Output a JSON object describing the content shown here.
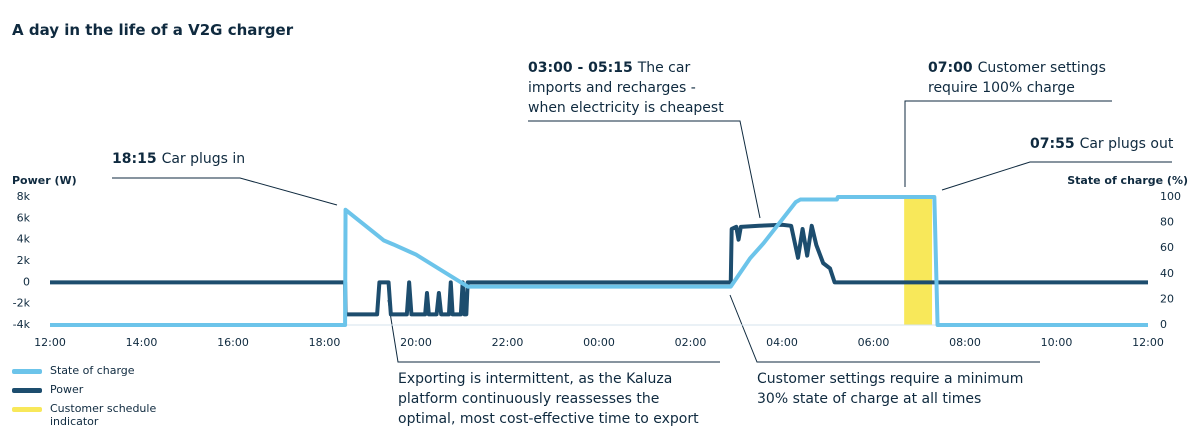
{
  "chart_data": {
    "type": "line",
    "title": "A day in the life of a V2G charger",
    "ylabel": "Power (W)",
    "y2label": "State of charge (%)",
    "xlim": [
      12,
      36
    ],
    "xticks": [
      {
        "value": 12,
        "label": "12:00"
      },
      {
        "value": 14,
        "label": "14:00"
      },
      {
        "value": 16,
        "label": "16:00"
      },
      {
        "value": 18,
        "label": "18:00"
      },
      {
        "value": 20,
        "label": "20:00"
      },
      {
        "value": 22,
        "label": "22:00"
      },
      {
        "value": 24,
        "label": "00:00"
      },
      {
        "value": 26,
        "label": "02:00"
      },
      {
        "value": 28,
        "label": "04:00"
      },
      {
        "value": 30,
        "label": "06:00"
      },
      {
        "value": 32,
        "label": "08:00"
      },
      {
        "value": 34,
        "label": "10:00"
      },
      {
        "value": 36,
        "label": "12:00"
      }
    ],
    "ylim": [
      -4000,
      8000
    ],
    "yticks": [
      {
        "value": -4000,
        "label": "-4k"
      },
      {
        "value": -2000,
        "label": "-2k"
      },
      0,
      {
        "value": 2000,
        "label": "2k"
      },
      {
        "value": 4000,
        "label": "4k"
      },
      {
        "value": 6000,
        "label": "6k"
      },
      {
        "value": 8000,
        "label": "8k"
      }
    ],
    "y2lim": [
      0,
      100
    ],
    "y2ticks": [
      0,
      20,
      40,
      60,
      80,
      100
    ],
    "series": [
      {
        "name": "Power",
        "color": "#1d4d6e",
        "axis": "y",
        "x": [
          12,
          18.45,
          18.46,
          19.15,
          19.2,
          19.4,
          19.45,
          19.8,
          19.85,
          19.9,
          20.2,
          20.24,
          20.28,
          20.45,
          20.5,
          20.55,
          20.72,
          20.76,
          20.8,
          20.98,
          21.02,
          21.06,
          21.1,
          21.13,
          26.88,
          26.9,
          27.0,
          27.05,
          27.1,
          27.5,
          28.0,
          28.2,
          28.35,
          28.45,
          28.55,
          28.65,
          28.75,
          28.9,
          29.05,
          29.15,
          36
        ],
        "values": [
          0,
          0,
          -3000,
          -3000,
          0,
          0,
          -3000,
          -3000,
          0,
          -3000,
          -3000,
          -1000,
          -3000,
          -3000,
          -1000,
          -3000,
          -3000,
          0,
          -3000,
          -3000,
          0,
          -3000,
          -3000,
          0,
          0,
          5000,
          5200,
          4000,
          5200,
          5300,
          5400,
          5300,
          2300,
          5000,
          2500,
          5300,
          3500,
          1800,
          1300,
          0,
          0
        ]
      },
      {
        "name": "State of charge",
        "color": "#6cc4ea",
        "axis": "y2",
        "x": [
          12,
          18.45,
          18.46,
          19.3,
          19.5,
          20,
          21.13,
          26.88,
          27.3,
          27.6,
          28.3,
          28.4,
          29.2,
          29.22,
          31.33,
          31.4,
          36
        ],
        "values": [
          0,
          0,
          90,
          66,
          63,
          55,
          30,
          30,
          52,
          64,
          96,
          98,
          98,
          100,
          100,
          0,
          0
        ]
      }
    ],
    "schedule": {
      "name": "Customer schedule indicator",
      "color": "#f8e85a",
      "start": 30.67,
      "end": 31.28
    },
    "annotations": [
      {
        "bold": "18:15",
        "text": [
          "Car plugs in"
        ]
      },
      {
        "bold": "03:00 - 05:15",
        "text": [
          "The car",
          "imports and recharges -",
          "when electricity is cheapest"
        ]
      },
      {
        "bold": "07:00",
        "text": [
          "Customer settings",
          "require 100% charge"
        ]
      },
      {
        "bold": "07:55",
        "text": [
          "Car plugs out"
        ]
      },
      {
        "text": [
          "Exporting is intermittent, as the Kaluza",
          "platform continuously reassesses the",
          "optimal, most cost-effective time to export"
        ]
      },
      {
        "text": [
          "Customer settings require a minimum",
          "30% state of charge at all times"
        ]
      }
    ]
  }
}
